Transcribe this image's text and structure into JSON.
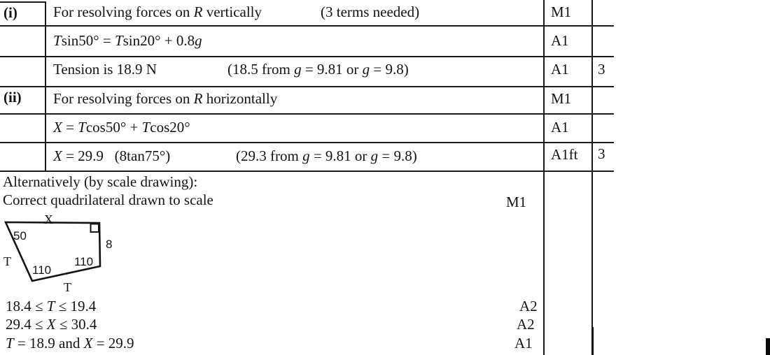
{
  "table": {
    "rows": [
      {
        "part": "(i)",
        "main": [
          {
            "t": "For resolving forces on "
          },
          {
            "t": "R",
            "i": 1
          },
          {
            "t": " vertically"
          }
        ],
        "note": [
          {
            "t": "(3 terms needed)"
          }
        ],
        "mark": "M1",
        "total": ""
      },
      {
        "part": "",
        "main": [
          {
            "t": "T",
            "i": 1
          },
          {
            "t": "sin50° = "
          },
          {
            "t": "T",
            "i": 1
          },
          {
            "t": "sin20° + 0.8"
          },
          {
            "t": "g",
            "i": 1
          }
        ],
        "note": [],
        "mark": "A1",
        "total": ""
      },
      {
        "part": "",
        "main": [
          {
            "t": "Tension is 18.9 N"
          }
        ],
        "note": [
          {
            "t": "(18.5 from "
          },
          {
            "t": "g",
            "i": 1
          },
          {
            "t": " = 9.81 or "
          },
          {
            "t": "g",
            "i": 1
          },
          {
            "t": " = 9.8)"
          }
        ],
        "mark": "A1",
        "total": "3"
      },
      {
        "part": "(ii)",
        "main": [
          {
            "t": "For resolving forces on "
          },
          {
            "t": "R",
            "i": 1
          },
          {
            "t": " horizontally"
          }
        ],
        "note": [],
        "mark": "M1",
        "total": ""
      },
      {
        "part": "",
        "main": [
          {
            "t": "X",
            "i": 1
          },
          {
            "t": " = "
          },
          {
            "t": "T",
            "i": 1
          },
          {
            "t": "cos50° + "
          },
          {
            "t": "T",
            "i": 1
          },
          {
            "t": "cos20°"
          }
        ],
        "note": [],
        "mark": "A1",
        "total": ""
      },
      {
        "part": "",
        "main": [
          {
            "t": "X",
            "i": 1
          },
          {
            "t": " = 29.9   (8tan75°)"
          }
        ],
        "note": [
          {
            "t": "(29.3 from "
          },
          {
            "t": "g",
            "i": 1
          },
          {
            "t": " = 9.81 or "
          },
          {
            "t": "g",
            "i": 1
          },
          {
            "t": " = 9.8)"
          }
        ],
        "mark": "A1ft",
        "total": "3"
      }
    ]
  },
  "alternative": {
    "line1": "Alternatively (by scale drawing):",
    "line2": "Correct quadrilateral drawn to scale",
    "mark": "M1"
  },
  "diagram": {
    "side_top": "X",
    "angle_top_left": "50",
    "side_right": "8",
    "side_left": "T",
    "angle_bottom_left": "110",
    "angle_bottom_right": "110",
    "side_bottom": "T"
  },
  "results": [
    {
      "runs": [
        {
          "t": "18.4 ≤ "
        },
        {
          "t": "T",
          "i": 1
        },
        {
          "t": " ≤ 19.4"
        }
      ],
      "mark": "A2"
    },
    {
      "runs": [
        {
          "t": "29.4 ≤ "
        },
        {
          "t": "X",
          "i": 1
        },
        {
          "t": " ≤ 30.4"
        }
      ],
      "mark": "A2"
    },
    {
      "runs": [
        {
          "t": "T",
          "i": 1
        },
        {
          "t": " = 18.9 and "
        },
        {
          "t": "X",
          "i": 1
        },
        {
          "t": " = 29.9"
        }
      ],
      "mark": "A1"
    }
  ]
}
